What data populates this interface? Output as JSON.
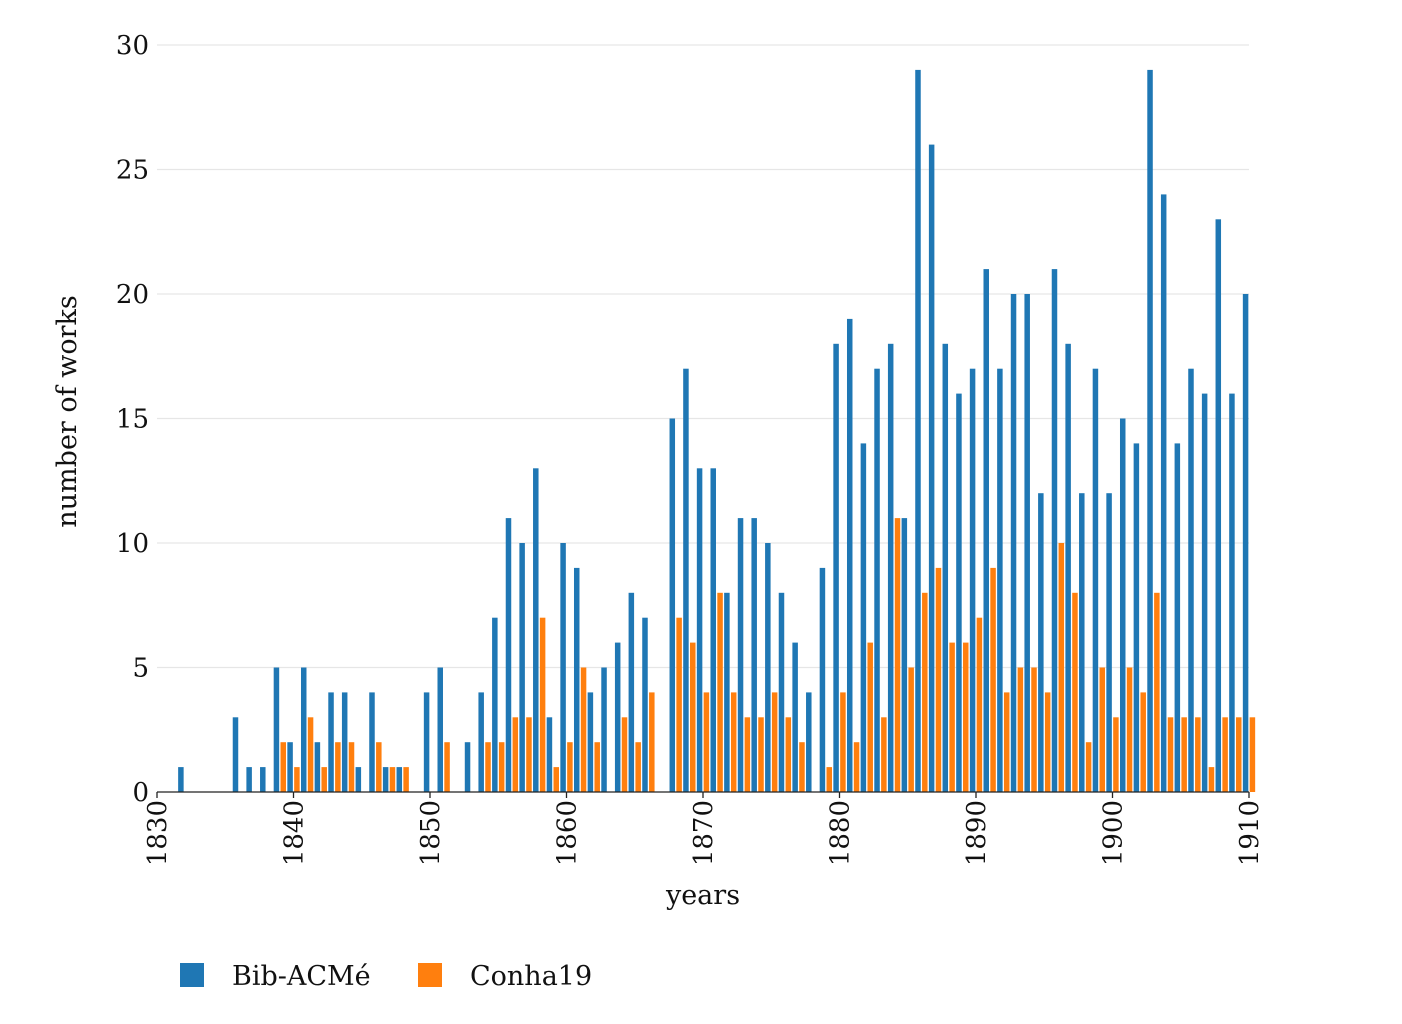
{
  "chart_data": {
    "type": "bar",
    "xlabel": "years",
    "ylabel": "number of works",
    "xlim": [
      1830,
      1910
    ],
    "ylim": [
      0,
      30
    ],
    "x_ticks": [
      1830,
      1840,
      1850,
      1860,
      1870,
      1880,
      1890,
      1900,
      1910
    ],
    "y_ticks": [
      0,
      5,
      10,
      15,
      20,
      25,
      30
    ],
    "grid": "horizontal",
    "legend_position": "bottom-left",
    "series": [
      {
        "name": "Bib-ACMé",
        "color": "#1f77b4",
        "points": [
          [
            1832,
            1
          ],
          [
            1836,
            3
          ],
          [
            1837,
            1
          ],
          [
            1838,
            1
          ],
          [
            1839,
            5
          ],
          [
            1840,
            2
          ],
          [
            1841,
            5
          ],
          [
            1842,
            2
          ],
          [
            1843,
            4
          ],
          [
            1844,
            4
          ],
          [
            1845,
            1
          ],
          [
            1846,
            4
          ],
          [
            1847,
            1
          ],
          [
            1848,
            1
          ],
          [
            1850,
            4
          ],
          [
            1851,
            5
          ],
          [
            1853,
            2
          ],
          [
            1854,
            4
          ],
          [
            1855,
            7
          ],
          [
            1856,
            11
          ],
          [
            1857,
            10
          ],
          [
            1858,
            13
          ],
          [
            1859,
            3
          ],
          [
            1860,
            10
          ],
          [
            1861,
            9
          ],
          [
            1862,
            4
          ],
          [
            1863,
            5
          ],
          [
            1864,
            6
          ],
          [
            1865,
            8
          ],
          [
            1866,
            7
          ],
          [
            1868,
            15
          ],
          [
            1869,
            17
          ],
          [
            1870,
            13
          ],
          [
            1871,
            13
          ],
          [
            1872,
            8
          ],
          [
            1873,
            11
          ],
          [
            1874,
            11
          ],
          [
            1875,
            10
          ],
          [
            1876,
            8
          ],
          [
            1877,
            6
          ],
          [
            1878,
            4
          ],
          [
            1879,
            9
          ],
          [
            1880,
            18
          ],
          [
            1881,
            19
          ],
          [
            1882,
            14
          ],
          [
            1883,
            17
          ],
          [
            1884,
            18
          ],
          [
            1885,
            11
          ],
          [
            1886,
            29
          ],
          [
            1887,
            26
          ],
          [
            1888,
            18
          ],
          [
            1889,
            16
          ],
          [
            1890,
            17
          ],
          [
            1891,
            21
          ],
          [
            1892,
            17
          ],
          [
            1893,
            20
          ],
          [
            1894,
            20
          ],
          [
            1895,
            12
          ],
          [
            1896,
            21
          ],
          [
            1897,
            18
          ],
          [
            1898,
            12
          ],
          [
            1899,
            17
          ],
          [
            1900,
            12
          ],
          [
            1901,
            15
          ],
          [
            1902,
            14
          ],
          [
            1903,
            29
          ],
          [
            1904,
            24
          ],
          [
            1905,
            14
          ],
          [
            1906,
            17
          ],
          [
            1907,
            16
          ],
          [
            1908,
            23
          ],
          [
            1909,
            16
          ],
          [
            1910,
            20
          ]
        ]
      },
      {
        "name": "Conha19",
        "color": "#ff7f0e",
        "points": [
          [
            1839,
            2
          ],
          [
            1840,
            1
          ],
          [
            1841,
            3
          ],
          [
            1842,
            1
          ],
          [
            1843,
            2
          ],
          [
            1844,
            2
          ],
          [
            1846,
            2
          ],
          [
            1847,
            1
          ],
          [
            1848,
            1
          ],
          [
            1851,
            2
          ],
          [
            1854,
            2
          ],
          [
            1855,
            2
          ],
          [
            1856,
            3
          ],
          [
            1857,
            3
          ],
          [
            1858,
            7
          ],
          [
            1859,
            1
          ],
          [
            1860,
            2
          ],
          [
            1861,
            5
          ],
          [
            1862,
            2
          ],
          [
            1864,
            3
          ],
          [
            1865,
            2
          ],
          [
            1866,
            4
          ],
          [
            1868,
            7
          ],
          [
            1869,
            6
          ],
          [
            1870,
            4
          ],
          [
            1871,
            8
          ],
          [
            1872,
            4
          ],
          [
            1873,
            3
          ],
          [
            1874,
            3
          ],
          [
            1875,
            4
          ],
          [
            1876,
            3
          ],
          [
            1877,
            2
          ],
          [
            1879,
            1
          ],
          [
            1880,
            4
          ],
          [
            1881,
            2
          ],
          [
            1882,
            6
          ],
          [
            1883,
            3
          ],
          [
            1884,
            11
          ],
          [
            1885,
            5
          ],
          [
            1886,
            8
          ],
          [
            1887,
            9
          ],
          [
            1888,
            6
          ],
          [
            1889,
            6
          ],
          [
            1890,
            7
          ],
          [
            1891,
            9
          ],
          [
            1892,
            4
          ],
          [
            1893,
            5
          ],
          [
            1894,
            5
          ],
          [
            1895,
            4
          ],
          [
            1896,
            10
          ],
          [
            1897,
            8
          ],
          [
            1898,
            2
          ],
          [
            1899,
            5
          ],
          [
            1900,
            3
          ],
          [
            1901,
            5
          ],
          [
            1902,
            4
          ],
          [
            1903,
            8
          ],
          [
            1904,
            3
          ],
          [
            1905,
            3
          ],
          [
            1906,
            3
          ],
          [
            1907,
            1
          ],
          [
            1908,
            3
          ],
          [
            1909,
            3
          ],
          [
            1910,
            3
          ]
        ]
      }
    ]
  }
}
